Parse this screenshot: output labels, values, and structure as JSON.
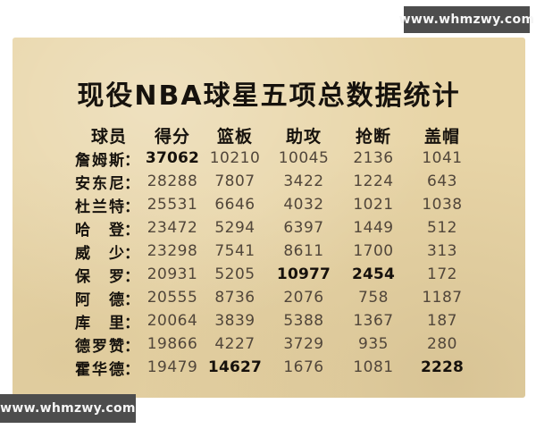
{
  "watermark": {
    "text": "www.whmzwy.com"
  },
  "title": "现役NBA球星五项总数据统计",
  "colors": {
    "card_bg": "#e8d5a7",
    "text_dark": "#16120d",
    "text_number": "#51463a",
    "watermark_bg": "#4d4d4d",
    "watermark_text": "#f5f5f5",
    "page_bg": "#ffffff"
  },
  "table": {
    "colon": "：",
    "headers": [
      "球员",
      "得分",
      "篮板",
      "助攻",
      "抢断",
      "盖帽"
    ],
    "rows": [
      {
        "name": "詹姆斯",
        "points": "37062",
        "rebounds": "10210",
        "assists": "10045",
        "steals": "2136",
        "blocks": "1041",
        "bold": [
          "points"
        ]
      },
      {
        "name": "安东尼",
        "points": "28288",
        "rebounds": "7807",
        "assists": "3422",
        "steals": "1224",
        "blocks": "643",
        "bold": []
      },
      {
        "name": "杜兰特",
        "points": "25531",
        "rebounds": "6646",
        "assists": "4032",
        "steals": "1021",
        "blocks": "1038",
        "bold": []
      },
      {
        "name": "哈登",
        "points": "23472",
        "rebounds": "5294",
        "assists": "6397",
        "steals": "1449",
        "blocks": "512",
        "bold": []
      },
      {
        "name": "威少",
        "points": "23298",
        "rebounds": "7541",
        "assists": "8611",
        "steals": "1700",
        "blocks": "313",
        "bold": []
      },
      {
        "name": "保罗",
        "points": "20931",
        "rebounds": "5205",
        "assists": "10977",
        "steals": "2454",
        "blocks": "172",
        "bold": [
          "assists",
          "steals"
        ]
      },
      {
        "name": "阿德",
        "points": "20555",
        "rebounds": "8736",
        "assists": "2076",
        "steals": "758",
        "blocks": "1187",
        "bold": []
      },
      {
        "name": "库里",
        "points": "20064",
        "rebounds": "3839",
        "assists": "5388",
        "steals": "1367",
        "blocks": "187",
        "bold": []
      },
      {
        "name": "德罗赞",
        "points": "19866",
        "rebounds": "4227",
        "assists": "3729",
        "steals": "935",
        "blocks": "280",
        "bold": []
      },
      {
        "name": "霍华德",
        "points": "19479",
        "rebounds": "14627",
        "assists": "1676",
        "steals": "1081",
        "blocks": "2228",
        "bold": [
          "rebounds",
          "blocks"
        ]
      }
    ]
  }
}
